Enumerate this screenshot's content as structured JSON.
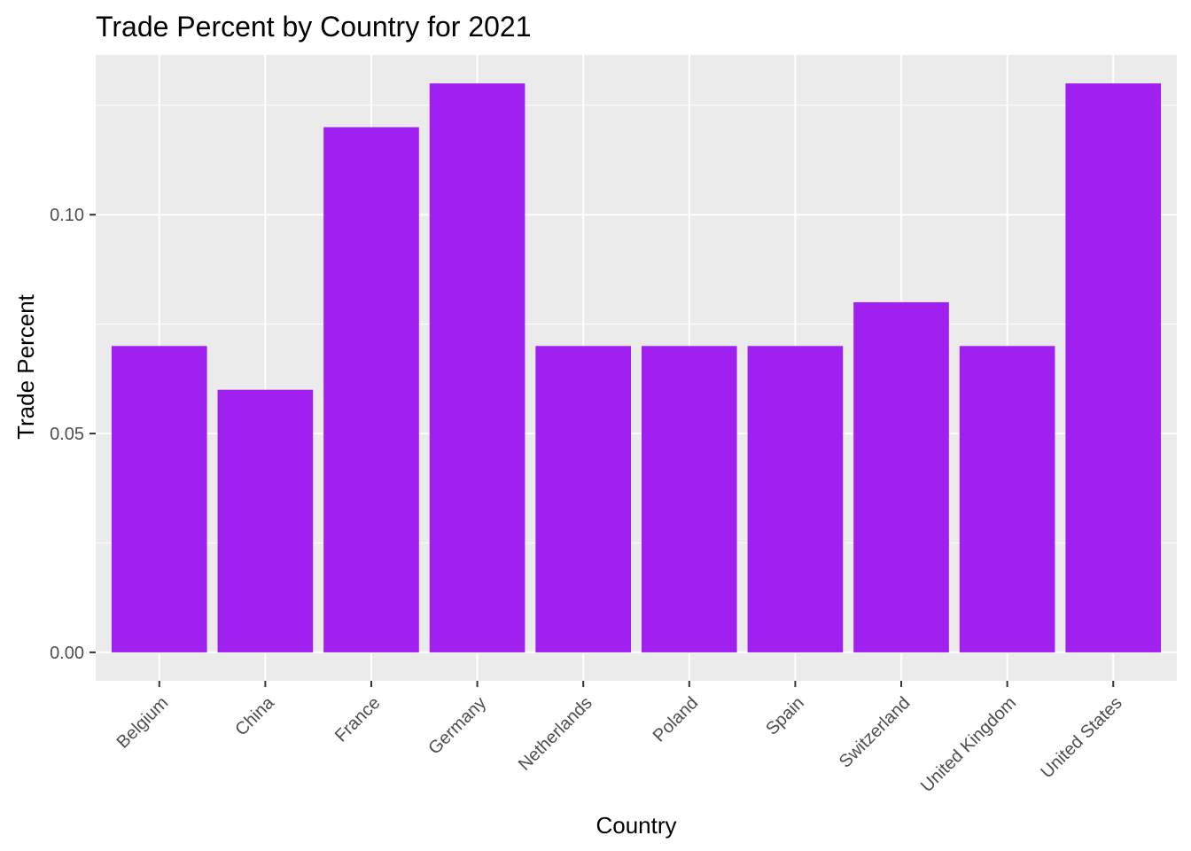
{
  "chart_data": {
    "type": "bar",
    "title": "Trade Percent by Country for 2021",
    "xlabel": "Country",
    "ylabel": "Trade Percent",
    "categories": [
      "Belgium",
      "China",
      "France",
      "Germany",
      "Netherlands",
      "Poland",
      "Spain",
      "Switzerland",
      "United Kingdom",
      "United States"
    ],
    "values": [
      0.07,
      0.06,
      0.12,
      0.13,
      0.07,
      0.07,
      0.07,
      0.08,
      0.07,
      0.13
    ],
    "yticks": [
      0.0,
      0.05,
      0.1
    ],
    "ytick_labels": [
      "0.00",
      "0.05",
      "0.10"
    ],
    "ylim": [
      -0.0065,
      0.1365
    ],
    "grid": true,
    "legend": "none",
    "colors": {
      "bar": "#A020F0",
      "panel_background": "#EBEBEB",
      "grid": "#FFFFFF",
      "tick_text": "#4D4D4D",
      "tick_mark": "#333333"
    }
  }
}
